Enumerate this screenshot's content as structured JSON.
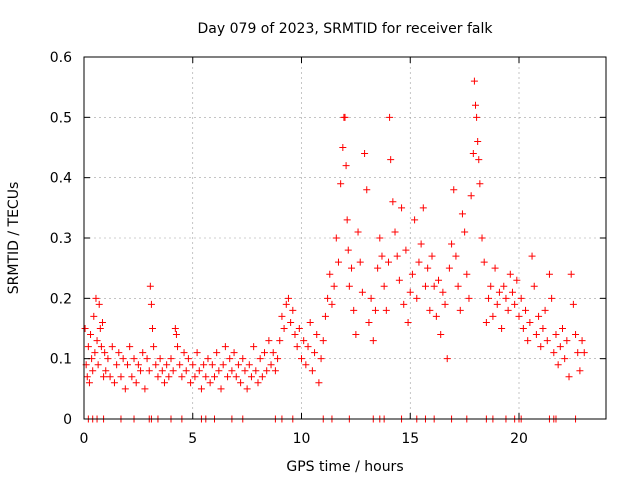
{
  "chart_data": {
    "type": "scatter",
    "title": "Day 079 of 2023, SRMTID for receiver falk",
    "xlabel": "GPS time / hours",
    "ylabel": "SRMTID / TECUs",
    "xlim": [
      0,
      24
    ],
    "ylim": [
      0,
      0.6
    ],
    "x_ticks": [
      0,
      5,
      10,
      15,
      20
    ],
    "x_tick_labels": [
      "0",
      "5",
      "10",
      "15",
      "20"
    ],
    "y_ticks": [
      0,
      0.1,
      0.2,
      0.3,
      0.4,
      0.5,
      0.6
    ],
    "y_tick_labels": [
      "0",
      "0.1",
      "0.2",
      "0.3",
      "0.4",
      "0.5",
      "0.6"
    ],
    "grid": true,
    "marker": "+",
    "series": [
      {
        "name": "SRMTID",
        "color": "#ff0000",
        "points": [
          [
            0.05,
            0.15
          ],
          [
            0.1,
            0.09
          ],
          [
            0.15,
            0.07
          ],
          [
            0.2,
            0.12
          ],
          [
            0.25,
            0.06
          ],
          [
            0.3,
            0.14
          ],
          [
            0.35,
            0.1
          ],
          [
            0.4,
            0.08
          ],
          [
            0.45,
            0.17
          ],
          [
            0.5,
            0.11
          ],
          [
            0.55,
            0.2
          ],
          [
            0.6,
            0.13
          ],
          [
            0.65,
            0.09
          ],
          [
            0.7,
            0.19
          ],
          [
            0.75,
            0.15
          ],
          [
            0.8,
            0.12
          ],
          [
            0.85,
            0.16
          ],
          [
            0.9,
            0.07
          ],
          [
            0.95,
            0.11
          ],
          [
            1.0,
            0.08
          ],
          [
            1.1,
            0.1
          ],
          [
            1.2,
            0.07
          ],
          [
            1.3,
            0.12
          ],
          [
            1.4,
            0.06
          ],
          [
            1.5,
            0.09
          ],
          [
            1.6,
            0.11
          ],
          [
            1.7,
            0.07
          ],
          [
            1.8,
            0.1
          ],
          [
            1.9,
            0.05
          ],
          [
            2.0,
            0.09
          ],
          [
            2.1,
            0.12
          ],
          [
            2.2,
            0.07
          ],
          [
            2.3,
            0.1
          ],
          [
            2.4,
            0.06
          ],
          [
            2.5,
            0.09
          ],
          [
            2.6,
            0.08
          ],
          [
            2.7,
            0.11
          ],
          [
            2.8,
            0.05
          ],
          [
            2.9,
            0.1
          ],
          [
            3.0,
            0.08
          ],
          [
            3.05,
            0.22
          ],
          [
            3.1,
            0.19
          ],
          [
            3.15,
            0.15
          ],
          [
            3.2,
            0.12
          ],
          [
            3.3,
            0.09
          ],
          [
            3.4,
            0.07
          ],
          [
            3.5,
            0.1
          ],
          [
            3.6,
            0.08
          ],
          [
            3.7,
            0.06
          ],
          [
            3.8,
            0.09
          ],
          [
            3.9,
            0.07
          ],
          [
            4.0,
            0.1
          ],
          [
            4.1,
            0.08
          ],
          [
            4.2,
            0.15
          ],
          [
            4.25,
            0.14
          ],
          [
            4.3,
            0.12
          ],
          [
            4.4,
            0.09
          ],
          [
            4.5,
            0.07
          ],
          [
            4.6,
            0.11
          ],
          [
            4.7,
            0.08
          ],
          [
            4.8,
            0.1
          ],
          [
            4.9,
            0.06
          ],
          [
            5.0,
            0.09
          ],
          [
            5.1,
            0.07
          ],
          [
            5.2,
            0.11
          ],
          [
            5.3,
            0.08
          ],
          [
            5.4,
            0.05
          ],
          [
            5.5,
            0.09
          ],
          [
            5.6,
            0.07
          ],
          [
            5.7,
            0.1
          ],
          [
            5.8,
            0.06
          ],
          [
            5.9,
            0.09
          ],
          [
            6.0,
            0.07
          ],
          [
            6.1,
            0.11
          ],
          [
            6.2,
            0.08
          ],
          [
            6.3,
            0.05
          ],
          [
            6.4,
            0.09
          ],
          [
            6.5,
            0.12
          ],
          [
            6.6,
            0.07
          ],
          [
            6.7,
            0.1
          ],
          [
            6.8,
            0.08
          ],
          [
            6.9,
            0.11
          ],
          [
            7.0,
            0.07
          ],
          [
            7.1,
            0.09
          ],
          [
            7.2,
            0.06
          ],
          [
            7.3,
            0.1
          ],
          [
            7.4,
            0.08
          ],
          [
            7.5,
            0.05
          ],
          [
            7.6,
            0.09
          ],
          [
            7.7,
            0.07
          ],
          [
            7.8,
            0.12
          ],
          [
            7.9,
            0.08
          ],
          [
            8.0,
            0.06
          ],
          [
            8.1,
            0.1
          ],
          [
            8.2,
            0.07
          ],
          [
            8.3,
            0.11
          ],
          [
            8.4,
            0.08
          ],
          [
            8.5,
            0.13
          ],
          [
            8.6,
            0.09
          ],
          [
            8.7,
            0.11
          ],
          [
            8.8,
            0.08
          ],
          [
            8.9,
            0.1
          ],
          [
            9.0,
            0.13
          ],
          [
            9.1,
            0.17
          ],
          [
            9.2,
            0.15
          ],
          [
            9.3,
            0.19
          ],
          [
            9.4,
            0.2
          ],
          [
            9.5,
            0.16
          ],
          [
            9.6,
            0.18
          ],
          [
            9.7,
            0.14
          ],
          [
            9.8,
            0.12
          ],
          [
            9.9,
            0.15
          ],
          [
            10.0,
            0.1
          ],
          [
            10.1,
            0.13
          ],
          [
            10.2,
            0.09
          ],
          [
            10.3,
            0.12
          ],
          [
            10.4,
            0.16
          ],
          [
            10.5,
            0.08
          ],
          [
            10.6,
            0.11
          ],
          [
            10.7,
            0.14
          ],
          [
            10.8,
            0.06
          ],
          [
            10.9,
            0.1
          ],
          [
            11.0,
            0.13
          ],
          [
            11.1,
            0.17
          ],
          [
            11.2,
            0.2
          ],
          [
            11.3,
            0.24
          ],
          [
            11.4,
            0.19
          ],
          [
            11.5,
            0.22
          ],
          [
            11.6,
            0.3
          ],
          [
            11.7,
            0.26
          ],
          [
            11.8,
            0.39
          ],
          [
            11.9,
            0.45
          ],
          [
            11.95,
            0.5
          ],
          [
            12.0,
            0.5
          ],
          [
            12.05,
            0.42
          ],
          [
            12.1,
            0.33
          ],
          [
            12.15,
            0.28
          ],
          [
            12.2,
            0.22
          ],
          [
            12.3,
            0.25
          ],
          [
            12.4,
            0.18
          ],
          [
            12.5,
            0.14
          ],
          [
            12.6,
            0.31
          ],
          [
            12.7,
            0.26
          ],
          [
            12.8,
            0.21
          ],
          [
            12.9,
            0.44
          ],
          [
            13.0,
            0.38
          ],
          [
            13.1,
            0.16
          ],
          [
            13.2,
            0.2
          ],
          [
            13.3,
            0.13
          ],
          [
            13.4,
            0.18
          ],
          [
            13.5,
            0.25
          ],
          [
            13.6,
            0.3
          ],
          [
            13.7,
            0.27
          ],
          [
            13.8,
            0.22
          ],
          [
            13.9,
            0.18
          ],
          [
            14.0,
            0.26
          ],
          [
            14.05,
            0.5
          ],
          [
            14.1,
            0.43
          ],
          [
            14.2,
            0.36
          ],
          [
            14.3,
            0.31
          ],
          [
            14.4,
            0.27
          ],
          [
            14.5,
            0.23
          ],
          [
            14.6,
            0.35
          ],
          [
            14.7,
            0.19
          ],
          [
            14.8,
            0.28
          ],
          [
            14.9,
            0.16
          ],
          [
            15.0,
            0.21
          ],
          [
            15.1,
            0.24
          ],
          [
            15.2,
            0.33
          ],
          [
            15.3,
            0.2
          ],
          [
            15.4,
            0.26
          ],
          [
            15.5,
            0.29
          ],
          [
            15.6,
            0.35
          ],
          [
            15.7,
            0.22
          ],
          [
            15.8,
            0.25
          ],
          [
            15.9,
            0.18
          ],
          [
            16.0,
            0.27
          ],
          [
            16.1,
            0.22
          ],
          [
            16.2,
            0.17
          ],
          [
            16.3,
            0.23
          ],
          [
            16.4,
            0.14
          ],
          [
            16.5,
            0.21
          ],
          [
            16.6,
            0.19
          ],
          [
            16.7,
            0.1
          ],
          [
            16.8,
            0.25
          ],
          [
            16.9,
            0.29
          ],
          [
            17.0,
            0.38
          ],
          [
            17.1,
            0.27
          ],
          [
            17.2,
            0.22
          ],
          [
            17.3,
            0.18
          ],
          [
            17.4,
            0.34
          ],
          [
            17.5,
            0.31
          ],
          [
            17.6,
            0.24
          ],
          [
            17.7,
            0.2
          ],
          [
            17.8,
            0.37
          ],
          [
            17.9,
            0.44
          ],
          [
            17.95,
            0.56
          ],
          [
            18.0,
            0.52
          ],
          [
            18.05,
            0.5
          ],
          [
            18.1,
            0.46
          ],
          [
            18.15,
            0.43
          ],
          [
            18.2,
            0.39
          ],
          [
            18.3,
            0.3
          ],
          [
            18.4,
            0.26
          ],
          [
            18.5,
            0.16
          ],
          [
            18.6,
            0.2
          ],
          [
            18.7,
            0.22
          ],
          [
            18.8,
            0.17
          ],
          [
            18.9,
            0.25
          ],
          [
            19.0,
            0.19
          ],
          [
            19.1,
            0.21
          ],
          [
            19.2,
            0.15
          ],
          [
            19.3,
            0.22
          ],
          [
            19.4,
            0.2
          ],
          [
            19.5,
            0.18
          ],
          [
            19.6,
            0.24
          ],
          [
            19.7,
            0.21
          ],
          [
            19.8,
            0.19
          ],
          [
            19.9,
            0.23
          ],
          [
            20.0,
            0.17
          ],
          [
            20.1,
            0.2
          ],
          [
            20.2,
            0.15
          ],
          [
            20.3,
            0.18
          ],
          [
            20.4,
            0.13
          ],
          [
            20.5,
            0.16
          ],
          [
            20.6,
            0.27
          ],
          [
            20.7,
            0.22
          ],
          [
            20.8,
            0.14
          ],
          [
            20.9,
            0.17
          ],
          [
            21.0,
            0.12
          ],
          [
            21.1,
            0.15
          ],
          [
            21.2,
            0.18
          ],
          [
            21.3,
            0.13
          ],
          [
            21.4,
            0.24
          ],
          [
            21.5,
            0.2
          ],
          [
            21.6,
            0.11
          ],
          [
            21.7,
            0.14
          ],
          [
            21.8,
            0.09
          ],
          [
            21.9,
            0.12
          ],
          [
            22.0,
            0.15
          ],
          [
            22.1,
            0.1
          ],
          [
            22.2,
            0.13
          ],
          [
            22.3,
            0.07
          ],
          [
            22.4,
            0.24
          ],
          [
            22.5,
            0.19
          ],
          [
            22.6,
            0.14
          ],
          [
            22.7,
            0.11
          ],
          [
            22.8,
            0.08
          ],
          [
            22.9,
            0.13
          ],
          [
            23.0,
            0.11
          ]
        ]
      }
    ],
    "zero_points_x": [
      0.2,
      0.4,
      0.6,
      0.9,
      1.7,
      2.3,
      3.0,
      3.1,
      3.4,
      4.0,
      4.5,
      5.4,
      5.6,
      6.0,
      6.8,
      7.3,
      8.8,
      9.1,
      9.6,
      11.0,
      11.4,
      12.2,
      13.3,
      13.6,
      13.8,
      14.6,
      15.3,
      15.7,
      16.1,
      16.9,
      17.6,
      18.5,
      18.8,
      19.4,
      19.8,
      20.0,
      20.1,
      21.4,
      21.6,
      21.7,
      22.6
    ]
  }
}
